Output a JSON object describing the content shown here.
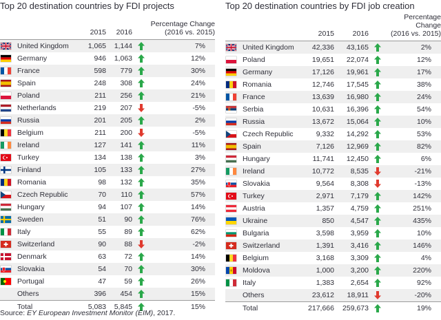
{
  "colors": {
    "up": "#2aa84a",
    "down": "#e03a2e",
    "stripe": "#efefef"
  },
  "left": {
    "title": "Top 20 destination countries by FDI projects",
    "headers": {
      "y1": "2015",
      "y2": "2016",
      "pct1": "Percentage Change",
      "pct2": "(2016 vs. 2015)"
    },
    "rows": [
      {
        "flag": "uk",
        "country": "United Kingdom",
        "v1": "1,065",
        "v2": "1,144",
        "dir": "up",
        "pct": "7%"
      },
      {
        "flag": "de",
        "country": "Germany",
        "v1": "946",
        "v2": "1,063",
        "dir": "up",
        "pct": "12%"
      },
      {
        "flag": "fr",
        "country": "France",
        "v1": "598",
        "v2": "779",
        "dir": "up",
        "pct": "30%"
      },
      {
        "flag": "es",
        "country": "Spain",
        "v1": "248",
        "v2": "308",
        "dir": "up",
        "pct": "24%"
      },
      {
        "flag": "pl",
        "country": "Poland",
        "v1": "211",
        "v2": "256",
        "dir": "up",
        "pct": "21%"
      },
      {
        "flag": "nl",
        "country": "Netherlands",
        "v1": "219",
        "v2": "207",
        "dir": "down",
        "pct": "-5%"
      },
      {
        "flag": "ru",
        "country": "Russia",
        "v1": "201",
        "v2": "205",
        "dir": "up",
        "pct": "2%"
      },
      {
        "flag": "be",
        "country": "Belgium",
        "v1": "211",
        "v2": "200",
        "dir": "down",
        "pct": "-5%"
      },
      {
        "flag": "ie",
        "country": "Ireland",
        "v1": "127",
        "v2": "141",
        "dir": "up",
        "pct": "11%"
      },
      {
        "flag": "tr",
        "country": "Turkey",
        "v1": "134",
        "v2": "138",
        "dir": "up",
        "pct": "3%"
      },
      {
        "flag": "fi",
        "country": "Finland",
        "v1": "105",
        "v2": "133",
        "dir": "up",
        "pct": "27%"
      },
      {
        "flag": "ro",
        "country": "Romania",
        "v1": "98",
        "v2": "132",
        "dir": "up",
        "pct": "35%"
      },
      {
        "flag": "cz",
        "country": "Czech Republic",
        "v1": "70",
        "v2": "110",
        "dir": "up",
        "pct": "57%"
      },
      {
        "flag": "hu",
        "country": "Hungary",
        "v1": "94",
        "v2": "107",
        "dir": "up",
        "pct": "14%"
      },
      {
        "flag": "se",
        "country": "Sweden",
        "v1": "51",
        "v2": "90",
        "dir": "up",
        "pct": "76%"
      },
      {
        "flag": "it",
        "country": "Italy",
        "v1": "55",
        "v2": "89",
        "dir": "up",
        "pct": "62%"
      },
      {
        "flag": "ch",
        "country": "Switzerland",
        "v1": "90",
        "v2": "88",
        "dir": "down",
        "pct": "-2%"
      },
      {
        "flag": "dk",
        "country": "Denmark",
        "v1": "63",
        "v2": "72",
        "dir": "up",
        "pct": "14%"
      },
      {
        "flag": "sk",
        "country": "Slovakia",
        "v1": "54",
        "v2": "70",
        "dir": "up",
        "pct": "30%"
      },
      {
        "flag": "pt",
        "country": "Portugal",
        "v1": "47",
        "v2": "59",
        "dir": "up",
        "pct": "26%"
      },
      {
        "flag": "",
        "country": "Others",
        "v1": "396",
        "v2": "454",
        "dir": "up",
        "pct": "15%"
      }
    ],
    "total": {
      "country": "Total",
      "v1": "5,083",
      "v2": "5,845",
      "dir": "up",
      "pct": "15%"
    }
  },
  "right": {
    "title": "Top 20 destination countries by FDI job creation",
    "headers": {
      "y1": "2015",
      "y2": "2016",
      "pct1": "Percentage Change",
      "pct2": "(2016 vs. 2015)"
    },
    "rows": [
      {
        "flag": "uk",
        "country": "United Kingdom",
        "v1": "42,336",
        "v2": "43,165",
        "dir": "up",
        "pct": "2%"
      },
      {
        "flag": "pl",
        "country": "Poland",
        "v1": "19,651",
        "v2": "22,074",
        "dir": "up",
        "pct": "12%"
      },
      {
        "flag": "de",
        "country": "Germany",
        "v1": "17,126",
        "v2": "19,961",
        "dir": "up",
        "pct": "17%"
      },
      {
        "flag": "ro",
        "country": "Romania",
        "v1": "12,746",
        "v2": "17,545",
        "dir": "up",
        "pct": "38%"
      },
      {
        "flag": "fr",
        "country": "France",
        "v1": "13,639",
        "v2": "16,980",
        "dir": "up",
        "pct": "24%"
      },
      {
        "flag": "rs",
        "country": "Serbia",
        "v1": "10,631",
        "v2": "16,396",
        "dir": "up",
        "pct": "54%"
      },
      {
        "flag": "ru",
        "country": "Russia",
        "v1": "13,672",
        "v2": "15,064",
        "dir": "up",
        "pct": "10%"
      },
      {
        "flag": "cz",
        "country": "Czech Republic",
        "v1": "9,332",
        "v2": "14,292",
        "dir": "up",
        "pct": "53%"
      },
      {
        "flag": "es",
        "country": "Spain",
        "v1": "7,126",
        "v2": "12,969",
        "dir": "up",
        "pct": "82%"
      },
      {
        "flag": "hu",
        "country": "Hungary",
        "v1": "11,741",
        "v2": "12,450",
        "dir": "up",
        "pct": "6%"
      },
      {
        "flag": "ie",
        "country": "Ireland",
        "v1": "10,772",
        "v2": "8,535",
        "dir": "down",
        "pct": "-21%"
      },
      {
        "flag": "sk",
        "country": "Slovakia",
        "v1": "9,564",
        "v2": "8,308",
        "dir": "down",
        "pct": "-13%"
      },
      {
        "flag": "tr",
        "country": "Turkey",
        "v1": "2,971",
        "v2": "7,179",
        "dir": "up",
        "pct": "142%"
      },
      {
        "flag": "at",
        "country": "Austria",
        "v1": "1,357",
        "v2": "4,759",
        "dir": "up",
        "pct": "251%"
      },
      {
        "flag": "ua",
        "country": "Ukraine",
        "v1": "850",
        "v2": "4,547",
        "dir": "up",
        "pct": "435%"
      },
      {
        "flag": "bg",
        "country": "Bulgaria",
        "v1": "3,598",
        "v2": "3,959",
        "dir": "up",
        "pct": "10%"
      },
      {
        "flag": "ch",
        "country": "Switzerland",
        "v1": "1,391",
        "v2": "3,416",
        "dir": "up",
        "pct": "146%"
      },
      {
        "flag": "be",
        "country": "Belgium",
        "v1": "3,168",
        "v2": "3,309",
        "dir": "up",
        "pct": "4%"
      },
      {
        "flag": "md",
        "country": "Moldova",
        "v1": "1,000",
        "v2": "3,200",
        "dir": "up",
        "pct": "220%"
      },
      {
        "flag": "it",
        "country": "Italy",
        "v1": "1,383",
        "v2": "2,654",
        "dir": "up",
        "pct": "92%"
      },
      {
        "flag": "",
        "country": "Others",
        "v1": "23,612",
        "v2": "18,911",
        "dir": "down",
        "pct": "-20%"
      }
    ],
    "total": {
      "country": "Total",
      "v1": "217,666",
      "v2": "259,673",
      "dir": "up",
      "pct": "19%"
    }
  },
  "source": {
    "prefix": "Source: ",
    "italic": "EY European Investment Monitor (EIM)",
    "suffix": ", 2017."
  }
}
